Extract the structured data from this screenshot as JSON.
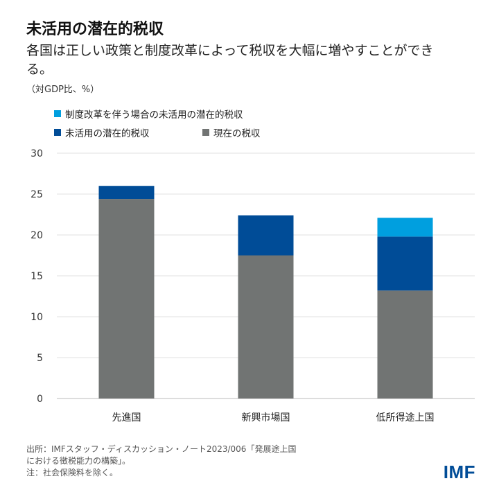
{
  "title": "未活用の潜在的税収",
  "subtitle": "各国は正しい政策と制度改革によって税収を大幅に増やすことができる。",
  "unit": "（対GDP比、%）",
  "source_lines": [
    "出所：IMFスタッフ・ディスカッション・ノート2023/006「発展途上国",
    "における徴税能力の構築」。",
    "注：社会保険料を除く。"
  ],
  "logo": "IMF",
  "chart_data": {
    "type": "bar",
    "stacked": true,
    "categories": [
      "先進国",
      "新興市場国",
      "低所得途上国"
    ],
    "series": [
      {
        "name": "現在の税収",
        "color": "#717473",
        "values": [
          24.4,
          17.5,
          13.2
        ]
      },
      {
        "name": "未活用の潜在的税収",
        "color": "#004c97",
        "values": [
          1.6,
          4.9,
          6.6
        ]
      },
      {
        "name": "制度改革を伴う場合の未活用の潜在的税収",
        "color": "#009fdf",
        "values": [
          0,
          0,
          2.3
        ]
      }
    ],
    "ylim": [
      0,
      30
    ],
    "yticks": [
      0,
      5,
      10,
      15,
      20,
      25,
      30
    ],
    "grid": true,
    "legend": "top-left"
  }
}
